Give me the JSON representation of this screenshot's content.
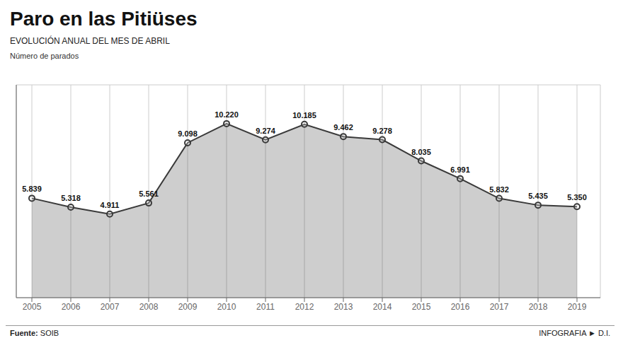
{
  "chart_data": {
    "type": "area",
    "title": "Paro en las Pitiüses",
    "subtitle": "EVOLUCIÓN ANUAL DEL MES DE ABRIL",
    "ylabel": "Número de parados",
    "annotations": [
      "Fuente:",
      "SOIB",
      "INFOGRAFIA ► D.I."
    ],
    "x": [
      2005,
      2006,
      2007,
      2008,
      2009,
      2010,
      2011,
      2012,
      2013,
      2014,
      2015,
      2016,
      2017,
      2018,
      2019
    ],
    "values": [
      5839,
      5318,
      4911,
      5561,
      9098,
      10220,
      9274,
      10185,
      9462,
      9278,
      8035,
      6991,
      5832,
      5435,
      5350
    ],
    "value_labels": [
      "5.839",
      "5.318",
      "4.911",
      "5.561",
      "9.098",
      "10.220",
      "9.274",
      "10.185",
      "9.462",
      "9.278",
      "8.035",
      "6.991",
      "5.832",
      "5.435",
      "5.350"
    ],
    "data_labels": true,
    "color": "#3a3a3a",
    "marker": "circle",
    "xlim": [
      2004.6,
      2019.6
    ],
    "xticks": [
      2005,
      2006,
      2007,
      2008,
      2009,
      2010,
      2011,
      2012,
      2013,
      2014,
      2015,
      2016,
      2017,
      2018,
      2019
    ],
    "ylim": [
      0,
      12500
    ],
    "yticks": [
      0,
      2000,
      4000,
      6000,
      8000,
      10000,
      12000
    ],
    "grid": true,
    "tick_labels": "x"
  }
}
